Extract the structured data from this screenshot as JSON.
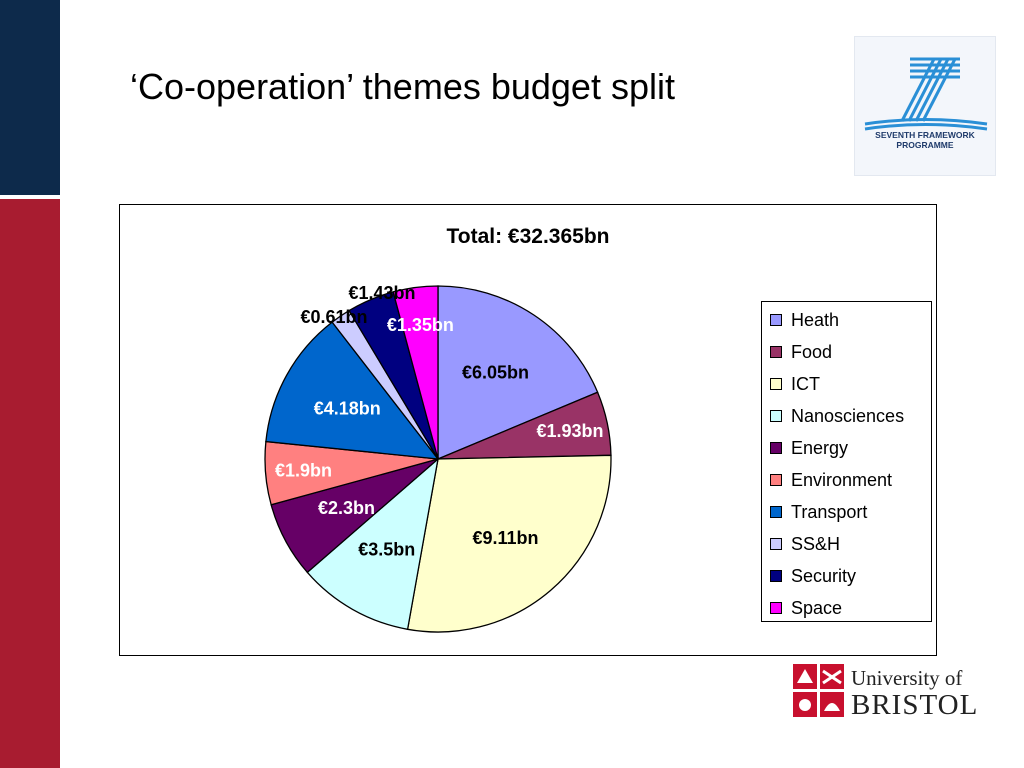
{
  "slide": {
    "title": "‘Co-operation’ themes budget split"
  },
  "logos": {
    "fp7": {
      "line1": "SEVENTH FRAMEWORK",
      "line2": "PROGRAMME",
      "number": "7"
    },
    "university": {
      "line1": "University of",
      "line2": "BRISTOL"
    }
  },
  "colors": {
    "top_bar": "#0d2a4b",
    "side_bar": "#a81c30"
  },
  "chart_data": {
    "type": "pie",
    "title": "Total: €32.365bn",
    "legend_position": "right",
    "slices": [
      {
        "name": "Heath",
        "value": 6.05,
        "label": "€6.05bn",
        "color": "#9999ff",
        "label_color": "#000000"
      },
      {
        "name": "Food",
        "value": 1.93,
        "label": "€1.93bn",
        "color": "#993366",
        "label_color": "#ffffff"
      },
      {
        "name": "ICT",
        "value": 9.11,
        "label": "€9.11bn",
        "color": "#ffffcc",
        "label_color": "#000000"
      },
      {
        "name": "Nanosciences",
        "value": 3.5,
        "label": "€3.5bn",
        "color": "#ccffff",
        "label_color": "#000000"
      },
      {
        "name": "Energy",
        "value": 2.3,
        "label": "€2.3bn",
        "color": "#660066",
        "label_color": "#ffffff"
      },
      {
        "name": "Environment",
        "value": 1.9,
        "label": "€1.9bn",
        "color": "#ff8080",
        "label_color": "#ffffff"
      },
      {
        "name": "Transport",
        "value": 4.18,
        "label": "€4.18bn",
        "color": "#0066cc",
        "label_color": "#ffffff"
      },
      {
        "name": "SS&H",
        "value": 0.61,
        "label": "€0.61bn",
        "color": "#ccccff",
        "label_color": "#000000"
      },
      {
        "name": "Security",
        "value": 1.43,
        "label": "€1.43bn",
        "color": "#000080",
        "label_color": "#000000"
      },
      {
        "name": "Space",
        "value": 1.35,
        "label": "€1.35bn",
        "color": "#ff00ff",
        "label_color": "#ffffff"
      }
    ]
  }
}
